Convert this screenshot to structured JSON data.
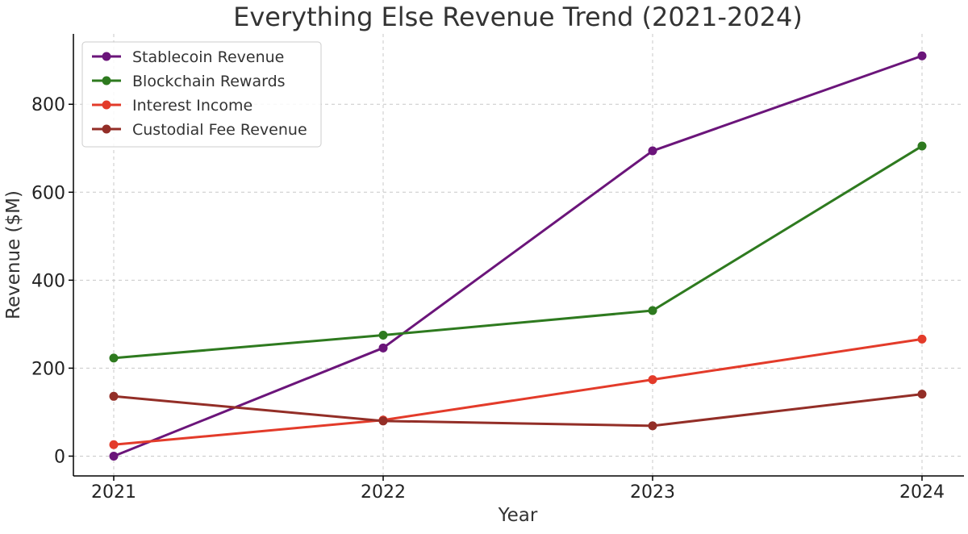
{
  "chart_data": {
    "type": "line",
    "title": "Everything Else Revenue Trend (2021-2024)",
    "xlabel": "Year",
    "ylabel": "Revenue ($M)",
    "x": [
      "2021",
      "2022",
      "2023",
      "2024"
    ],
    "yticks": [
      0,
      200,
      400,
      600,
      800
    ],
    "ylim": [
      -45,
      960
    ],
    "grid": true,
    "legend_position": "top-left",
    "series": [
      {
        "name": "Stablecoin Revenue",
        "color": "#6b157a",
        "values": [
          0,
          246,
          694,
          910
        ]
      },
      {
        "name": "Blockchain Rewards",
        "color": "#2e7a1f",
        "values": [
          223,
          275,
          331,
          705
        ]
      },
      {
        "name": "Interest Income",
        "color": "#e33b2a",
        "values": [
          26,
          82,
          174,
          266
        ]
      },
      {
        "name": "Custodial Fee Revenue",
        "color": "#932e27",
        "values": [
          136,
          80,
          69,
          141
        ]
      }
    ]
  }
}
